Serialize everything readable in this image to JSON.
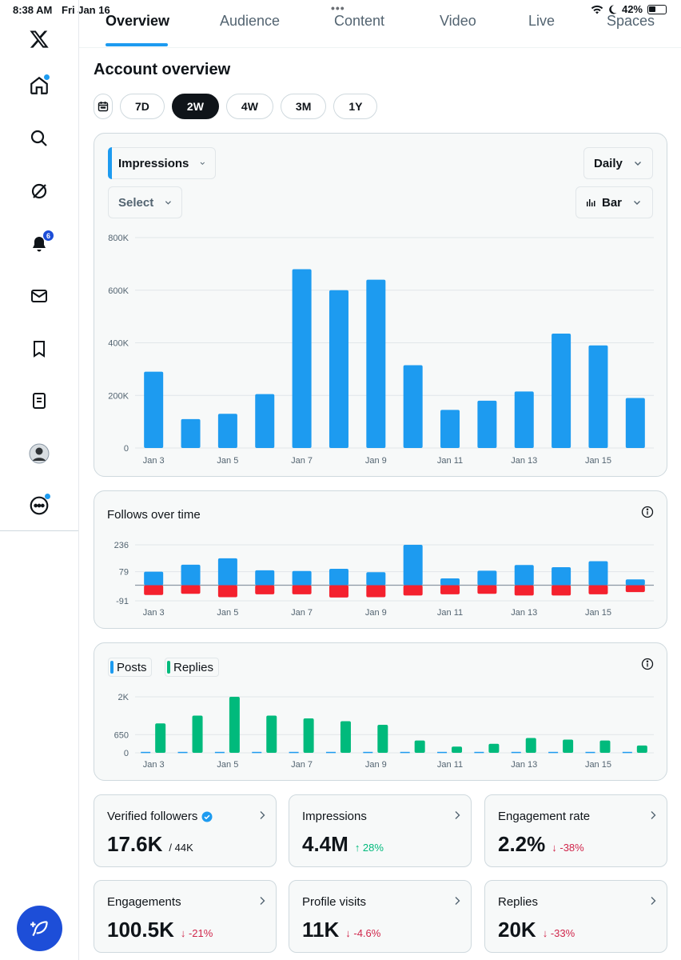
{
  "status_bar": {
    "time": "8:38 AM",
    "date": "Fri Jan 16",
    "battery": "42%"
  },
  "sidebar": {
    "notification_count": "6",
    "items": [
      "x-logo-icon",
      "home-icon",
      "search-icon",
      "grok-icon",
      "bell-icon",
      "mail-icon",
      "bookmark-icon",
      "lists-icon",
      "avatar",
      "more-icon"
    ]
  },
  "tabs": [
    "Overview",
    "Audience",
    "Content",
    "Video",
    "Live",
    "Spaces"
  ],
  "active_tab": "Overview",
  "page_title": "Account overview",
  "ranges": [
    "7D",
    "2W",
    "4W",
    "3M",
    "1Y"
  ],
  "active_range": "2W",
  "impressions_card": {
    "metric_select": "Impressions",
    "interval_select": "Daily",
    "compare_select": "Select",
    "chart_type_select": "Bar"
  },
  "follows_card": {
    "title": "Follows over time"
  },
  "posts_card": {
    "legend": [
      "Posts",
      "Replies"
    ]
  },
  "metrics": [
    {
      "label": "Verified followers",
      "value": "17.6K",
      "sub": "/ 44K",
      "change": ""
    },
    {
      "label": "Impressions",
      "value": "4.4M",
      "sub": "",
      "change": "↑ 28%"
    },
    {
      "label": "Engagement rate",
      "value": "2.2%",
      "sub": "",
      "change": "↓ -38%"
    },
    {
      "label": "Engagements",
      "value": "100.5K",
      "sub": "",
      "change": "↓ -21%"
    },
    {
      "label": "Profile visits",
      "value": "11K",
      "sub": "",
      "change": "↓ -4.6%"
    },
    {
      "label": "Replies",
      "value": "20K",
      "sub": "",
      "change": "↓ -33%"
    }
  ],
  "colors": {
    "blue": "#1d9bf0",
    "red": "#f4212e",
    "green": "#00ba7c",
    "up": "#00ba7c",
    "down": "#d0264b"
  },
  "chart_data": [
    {
      "type": "bar",
      "x_labels": [
        "Jan 3",
        "Jan 5",
        "Jan 7",
        "Jan 9",
        "Jan 11",
        "Jan 13",
        "Jan 15"
      ],
      "yticks": [
        "0",
        "200K",
        "400K",
        "600K",
        "800K"
      ],
      "ylim": [
        0,
        800000
      ],
      "grid": true,
      "series": [
        {
          "name": "Impressions",
          "values": [
            290000,
            110000,
            130000,
            205000,
            680000,
            600000,
            640000,
            315000,
            145000,
            180000,
            215000,
            435000,
            390000,
            190000
          ]
        }
      ]
    },
    {
      "type": "bar",
      "title": "Follows over time",
      "x_labels": [
        "Jan 3",
        "Jan 5",
        "Jan 7",
        "Jan 9",
        "Jan 11",
        "Jan 13",
        "Jan 15"
      ],
      "yticks": [
        "-91",
        "79",
        "236"
      ],
      "ylim": [
        -91,
        236
      ],
      "grid": true,
      "series": [
        {
          "values": [
            79,
            120,
            157,
            87,
            83,
            96,
            76,
            236,
            40,
            85,
            118,
            105,
            140,
            34
          ]
        },
        {
          "values": [
            -57,
            -50,
            -70,
            -53,
            -53,
            -72,
            -70,
            -60,
            -53,
            -50,
            -60,
            -60,
            -53,
            -40
          ]
        }
      ]
    },
    {
      "type": "bar",
      "x_labels": [
        "Jan 3",
        "Jan 5",
        "Jan 7",
        "Jan 9",
        "Jan 11",
        "Jan 13",
        "Jan 15"
      ],
      "yticks": [
        "0",
        "650",
        "2K"
      ],
      "ylim": [
        0,
        2000
      ],
      "grid": true,
      "series": [
        {
          "name": "Posts",
          "values": [
            5,
            5,
            5,
            5,
            5,
            5,
            5,
            5,
            5,
            5,
            5,
            5,
            5,
            5
          ]
        },
        {
          "name": "Replies",
          "values": [
            1050,
            1330,
            2000,
            1330,
            1230,
            1130,
            1000,
            440,
            220,
            320,
            530,
            470,
            440,
            260
          ]
        }
      ]
    }
  ]
}
